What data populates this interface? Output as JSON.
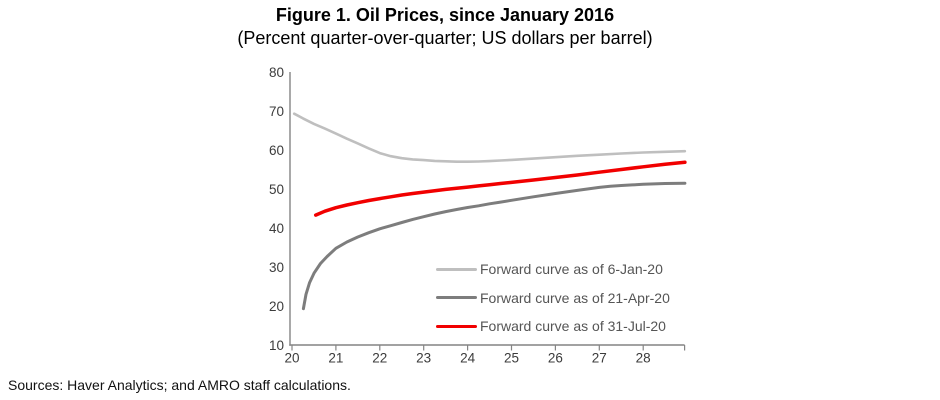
{
  "header": {
    "title": "Figure 1. Oil Prices, since January 2016",
    "subtitle": "(Percent quarter-over-quarter; US dollars per barrel)"
  },
  "footer": {
    "sources": "Sources: Haver Analytics; and AMRO staff calculations."
  },
  "chart_data": {
    "type": "line",
    "title": "Figure 1. Oil Prices, since January 2016",
    "subtitle": "(Percent quarter-over-quarter; US dollars per barrel)",
    "xlabel": "",
    "ylabel": "",
    "xlim": [
      20,
      29
    ],
    "ylim": [
      10,
      80
    ],
    "x_ticks": [
      20,
      21,
      22,
      23,
      24,
      25,
      26,
      27,
      28
    ],
    "y_ticks": [
      10,
      20,
      30,
      40,
      50,
      60,
      70,
      80
    ],
    "grid": false,
    "legend_position": "inside-lower-right",
    "axis_color": "#848484",
    "tick_label_color": "#3c3c3c",
    "series": [
      {
        "name": "Forward curve as of 6-Jan-20",
        "color": "#bfbfbf",
        "width": 2.6,
        "points": [
          [
            20.05,
            69.3
          ],
          [
            20.25,
            68.1
          ],
          [
            20.5,
            66.7
          ],
          [
            20.75,
            65.5
          ],
          [
            21,
            64.2
          ],
          [
            21.25,
            62.9
          ],
          [
            21.5,
            61.7
          ],
          [
            21.75,
            60.4
          ],
          [
            22,
            59.2
          ],
          [
            22.25,
            58.4
          ],
          [
            22.5,
            57.9
          ],
          [
            22.75,
            57.6
          ],
          [
            23,
            57.4
          ],
          [
            23.25,
            57.2
          ],
          [
            23.5,
            57.1
          ],
          [
            23.75,
            57.0
          ],
          [
            24,
            57.0
          ],
          [
            24.25,
            57.05
          ],
          [
            24.5,
            57.15
          ],
          [
            24.75,
            57.3
          ],
          [
            25,
            57.45
          ],
          [
            25.5,
            57.8
          ],
          [
            26,
            58.15
          ],
          [
            26.5,
            58.5
          ],
          [
            27,
            58.8
          ],
          [
            27.5,
            59.1
          ],
          [
            28,
            59.35
          ],
          [
            28.5,
            59.55
          ],
          [
            28.95,
            59.7
          ]
        ]
      },
      {
        "name": "Forward curve as of 21-Apr-20",
        "color": "#7d7d7d",
        "width": 3,
        "points": [
          [
            20.26,
            19.3
          ],
          [
            20.32,
            23.0
          ],
          [
            20.4,
            26.0
          ],
          [
            20.5,
            28.4
          ],
          [
            20.65,
            30.9
          ],
          [
            20.8,
            32.7
          ],
          [
            21,
            34.8
          ],
          [
            21.25,
            36.4
          ],
          [
            21.5,
            37.7
          ],
          [
            21.75,
            38.8
          ],
          [
            22,
            39.8
          ],
          [
            22.25,
            40.6
          ],
          [
            22.5,
            41.4
          ],
          [
            22.75,
            42.2
          ],
          [
            23,
            42.9
          ],
          [
            23.25,
            43.6
          ],
          [
            23.5,
            44.2
          ],
          [
            23.75,
            44.75
          ],
          [
            24,
            45.25
          ],
          [
            24.25,
            45.7
          ],
          [
            24.5,
            46.2
          ],
          [
            24.75,
            46.65
          ],
          [
            25,
            47.1
          ],
          [
            25.5,
            48.0
          ],
          [
            26,
            48.85
          ],
          [
            26.5,
            49.65
          ],
          [
            27,
            50.4
          ],
          [
            27.25,
            50.7
          ],
          [
            27.5,
            50.9
          ],
          [
            27.75,
            51.05
          ],
          [
            28,
            51.2
          ],
          [
            28.5,
            51.4
          ],
          [
            28.95,
            51.5
          ]
        ]
      },
      {
        "name": "Forward curve as of 31-Jul-20",
        "color": "#f10000",
        "width": 3.5,
        "points": [
          [
            20.54,
            43.3
          ],
          [
            20.75,
            44.3
          ],
          [
            21,
            45.2
          ],
          [
            21.25,
            45.9
          ],
          [
            21.5,
            46.5
          ],
          [
            21.75,
            47.05
          ],
          [
            22,
            47.55
          ],
          [
            22.25,
            48.0
          ],
          [
            22.5,
            48.45
          ],
          [
            22.75,
            48.85
          ],
          [
            23,
            49.2
          ],
          [
            23.25,
            49.55
          ],
          [
            23.5,
            49.9
          ],
          [
            23.75,
            50.2
          ],
          [
            24,
            50.5
          ],
          [
            24.25,
            50.8
          ],
          [
            24.5,
            51.1
          ],
          [
            24.75,
            51.4
          ],
          [
            25,
            51.7
          ],
          [
            25.5,
            52.3
          ],
          [
            26,
            52.95
          ],
          [
            26.5,
            53.6
          ],
          [
            27,
            54.3
          ],
          [
            27.5,
            55.0
          ],
          [
            28,
            55.7
          ],
          [
            28.5,
            56.35
          ],
          [
            28.95,
            56.85
          ]
        ]
      }
    ]
  }
}
